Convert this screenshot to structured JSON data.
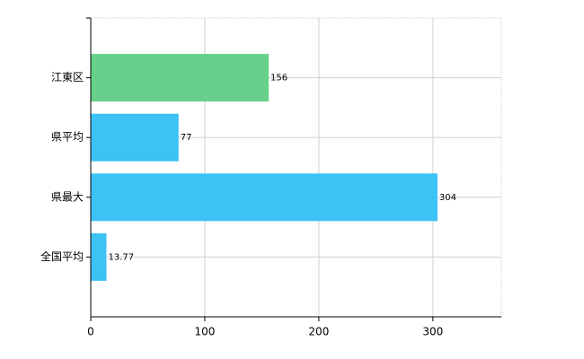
{
  "chart_data": {
    "type": "barh",
    "categories": [
      "江東区",
      "県平均",
      "県最大",
      "全国平均"
    ],
    "values": [
      156,
      77,
      304,
      13.77
    ],
    "colors": [
      "#66d08a",
      "#3cc2f5",
      "#3cc2f5",
      "#3cc2f5"
    ],
    "xlim": [
      0,
      360
    ],
    "xticks": [
      0,
      100,
      200,
      300
    ],
    "grid": true
  }
}
